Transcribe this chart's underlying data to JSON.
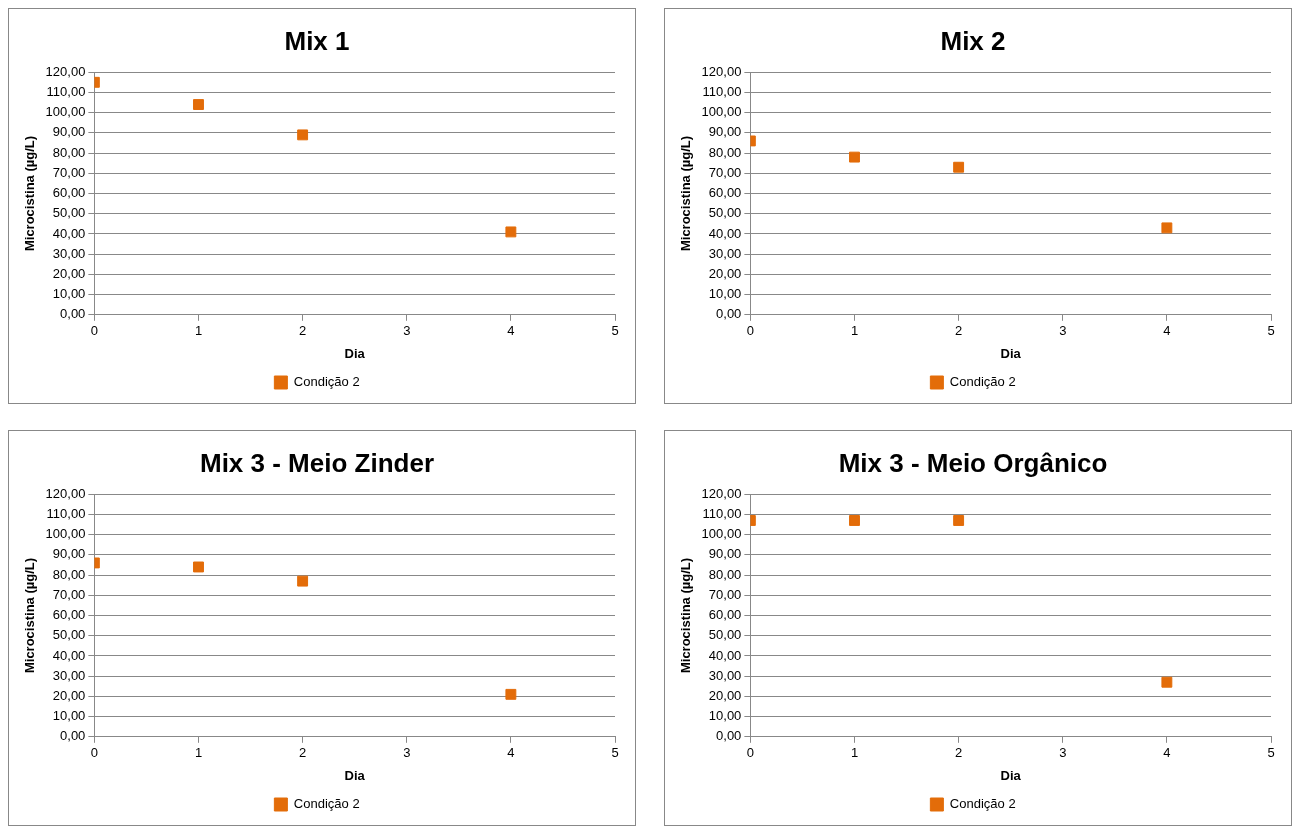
{
  "chart_data": [
    {
      "type": "scatter",
      "title": "Mix 1",
      "xlabel": "Dia",
      "ylabel": "Microcistina (µg/L)",
      "x": [
        0,
        1,
        2,
        4
      ],
      "series": [
        {
          "name": "Condição 2",
          "color": "#e36c09",
          "values": [
            115,
            104,
            89,
            41
          ]
        }
      ],
      "xlim": [
        0,
        5
      ],
      "xticks": [
        0,
        1,
        2,
        3,
        4,
        5
      ],
      "ylim": [
        0,
        120
      ],
      "yticks": [
        {
          "value": 0,
          "label": "0,00"
        },
        {
          "value": 10,
          "label": "10,00"
        },
        {
          "value": 20,
          "label": "20,00"
        },
        {
          "value": 30,
          "label": "30,00"
        },
        {
          "value": 40,
          "label": "40,00"
        },
        {
          "value": 50,
          "label": "50,00"
        },
        {
          "value": 60,
          "label": "60,00"
        },
        {
          "value": 70,
          "label": "70,00"
        },
        {
          "value": 80,
          "label": "80,00"
        },
        {
          "value": 90,
          "label": "90,00"
        },
        {
          "value": 100,
          "label": "100,00"
        },
        {
          "value": 110,
          "label": "110,00"
        },
        {
          "value": 120,
          "label": "120,00"
        }
      ],
      "grid": "y",
      "legend": "bottom",
      "marker": "square"
    },
    {
      "type": "scatter",
      "title": "Mix 2",
      "xlabel": "Dia",
      "ylabel": "Microcistina (µg/L)",
      "x": [
        0,
        1,
        2,
        4
      ],
      "series": [
        {
          "name": "Condição 2",
          "color": "#e36c09",
          "values": [
            86,
            78,
            73,
            43
          ]
        }
      ],
      "xlim": [
        0,
        5
      ],
      "xticks": [
        0,
        1,
        2,
        3,
        4,
        5
      ],
      "ylim": [
        0,
        120
      ],
      "yticks": [
        {
          "value": 0,
          "label": "0,00"
        },
        {
          "value": 10,
          "label": "10,00"
        },
        {
          "value": 20,
          "label": "20,00"
        },
        {
          "value": 30,
          "label": "30,00"
        },
        {
          "value": 40,
          "label": "40,00"
        },
        {
          "value": 50,
          "label": "50,00"
        },
        {
          "value": 60,
          "label": "60,00"
        },
        {
          "value": 70,
          "label": "70,00"
        },
        {
          "value": 80,
          "label": "80,00"
        },
        {
          "value": 90,
          "label": "90,00"
        },
        {
          "value": 100,
          "label": "100,00"
        },
        {
          "value": 110,
          "label": "110,00"
        },
        {
          "value": 120,
          "label": "120,00"
        }
      ],
      "grid": "y",
      "legend": "bottom",
      "marker": "square"
    },
    {
      "type": "scatter",
      "title": "Mix 3 - Meio Zinder",
      "xlabel": "Dia",
      "ylabel": "Microcistina (µg/L)",
      "x": [
        0,
        1,
        2,
        4
      ],
      "series": [
        {
          "name": "Condição 2",
          "color": "#e36c09",
          "values": [
            86,
            84,
            77,
            21
          ]
        }
      ],
      "xlim": [
        0,
        5
      ],
      "xticks": [
        0,
        1,
        2,
        3,
        4,
        5
      ],
      "ylim": [
        0,
        120
      ],
      "yticks": [
        {
          "value": 0,
          "label": "0,00"
        },
        {
          "value": 10,
          "label": "10,00"
        },
        {
          "value": 20,
          "label": "20,00"
        },
        {
          "value": 30,
          "label": "30,00"
        },
        {
          "value": 40,
          "label": "40,00"
        },
        {
          "value": 50,
          "label": "50,00"
        },
        {
          "value": 60,
          "label": "60,00"
        },
        {
          "value": 70,
          "label": "70,00"
        },
        {
          "value": 80,
          "label": "80,00"
        },
        {
          "value": 90,
          "label": "90,00"
        },
        {
          "value": 100,
          "label": "100,00"
        },
        {
          "value": 110,
          "label": "110,00"
        },
        {
          "value": 120,
          "label": "120,00"
        }
      ],
      "grid": "y",
      "legend": "bottom",
      "marker": "square"
    },
    {
      "type": "scatter",
      "title": "Mix 3 - Meio Orgânico",
      "xlabel": "Dia",
      "ylabel": "Microcistina (µg/L)",
      "x": [
        0,
        1,
        2,
        4
      ],
      "series": [
        {
          "name": "Condição 2",
          "color": "#e36c09",
          "values": [
            107,
            107,
            107,
            27
          ]
        }
      ],
      "xlim": [
        0,
        5
      ],
      "xticks": [
        0,
        1,
        2,
        3,
        4,
        5
      ],
      "ylim": [
        0,
        120
      ],
      "yticks": [
        {
          "value": 0,
          "label": "0,00"
        },
        {
          "value": 10,
          "label": "10,00"
        },
        {
          "value": 20,
          "label": "20,00"
        },
        {
          "value": 30,
          "label": "30,00"
        },
        {
          "value": 40,
          "label": "40,00"
        },
        {
          "value": 50,
          "label": "50,00"
        },
        {
          "value": 60,
          "label": "60,00"
        },
        {
          "value": 70,
          "label": "70,00"
        },
        {
          "value": 80,
          "label": "80,00"
        },
        {
          "value": 90,
          "label": "90,00"
        },
        {
          "value": 100,
          "label": "100,00"
        },
        {
          "value": 110,
          "label": "110,00"
        },
        {
          "value": 120,
          "label": "120,00"
        }
      ],
      "grid": "y",
      "legend": "bottom",
      "marker": "square"
    }
  ]
}
